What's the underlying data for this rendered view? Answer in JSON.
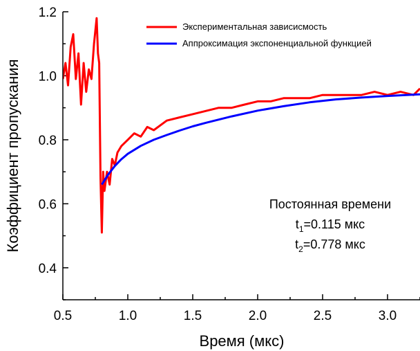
{
  "chart_data": {
    "type": "line",
    "title": "",
    "xlabel": "Время (мкс)",
    "ylabel": "Коэффициент пропускания",
    "xlim": [
      0.5,
      3.25
    ],
    "ylim": [
      0.3,
      1.2
    ],
    "x_ticks": [
      "0.5",
      "1.0",
      "1.5",
      "2.0",
      "2.5",
      "3.0"
    ],
    "y_ticks": [
      "0.4",
      "0.6",
      "0.8",
      "1.0",
      "1.2"
    ],
    "legend": {
      "placement": "top-right",
      "entries": [
        "Экспериментальная зависисмость",
        "Аппроксимация экспоненциальной функцией"
      ]
    },
    "annotation": {
      "line1": "Постоянная времени",
      "t1_sym": "t",
      "t1_sub": "1",
      "t1_val": "=0.115 мкс",
      "t2_sym": "t",
      "t2_sub": "2",
      "t2_val": "=0.778 мкс"
    },
    "series": [
      {
        "name": "Экспериментальная зависисмость",
        "color": "#ff0000",
        "x": [
          0.5,
          0.52,
          0.54,
          0.56,
          0.58,
          0.6,
          0.62,
          0.64,
          0.66,
          0.68,
          0.7,
          0.72,
          0.74,
          0.76,
          0.77,
          0.78,
          0.79,
          0.8,
          0.81,
          0.82,
          0.84,
          0.86,
          0.88,
          0.9,
          0.92,
          0.95,
          1.0,
          1.05,
          1.1,
          1.15,
          1.2,
          1.3,
          1.4,
          1.5,
          1.6,
          1.7,
          1.8,
          1.9,
          2.0,
          2.1,
          2.2,
          2.3,
          2.4,
          2.5,
          2.6,
          2.7,
          2.8,
          2.9,
          3.0,
          3.1,
          3.2,
          3.25
        ],
        "y": [
          0.99,
          1.04,
          0.97,
          1.09,
          1.13,
          0.99,
          1.07,
          0.91,
          1.04,
          0.95,
          1.02,
          0.99,
          1.1,
          1.18,
          1.07,
          1.04,
          0.68,
          0.51,
          0.7,
          0.64,
          0.7,
          0.66,
          0.74,
          0.72,
          0.76,
          0.78,
          0.8,
          0.82,
          0.81,
          0.84,
          0.83,
          0.86,
          0.87,
          0.88,
          0.89,
          0.9,
          0.9,
          0.91,
          0.92,
          0.92,
          0.93,
          0.93,
          0.93,
          0.94,
          0.94,
          0.94,
          0.94,
          0.95,
          0.94,
          0.95,
          0.94,
          0.96
        ]
      },
      {
        "name": "Аппроксимация экспоненциальной функцией",
        "color": "#0000ff",
        "x": [
          0.8,
          0.85,
          0.9,
          0.95,
          1.0,
          1.1,
          1.2,
          1.3,
          1.4,
          1.5,
          1.6,
          1.8,
          2.0,
          2.2,
          2.4,
          2.6,
          2.8,
          3.0,
          3.25
        ],
        "y": [
          0.66,
          0.692,
          0.718,
          0.739,
          0.756,
          0.781,
          0.8,
          0.815,
          0.829,
          0.842,
          0.853,
          0.873,
          0.891,
          0.905,
          0.917,
          0.926,
          0.932,
          0.937,
          0.942
        ]
      }
    ]
  }
}
